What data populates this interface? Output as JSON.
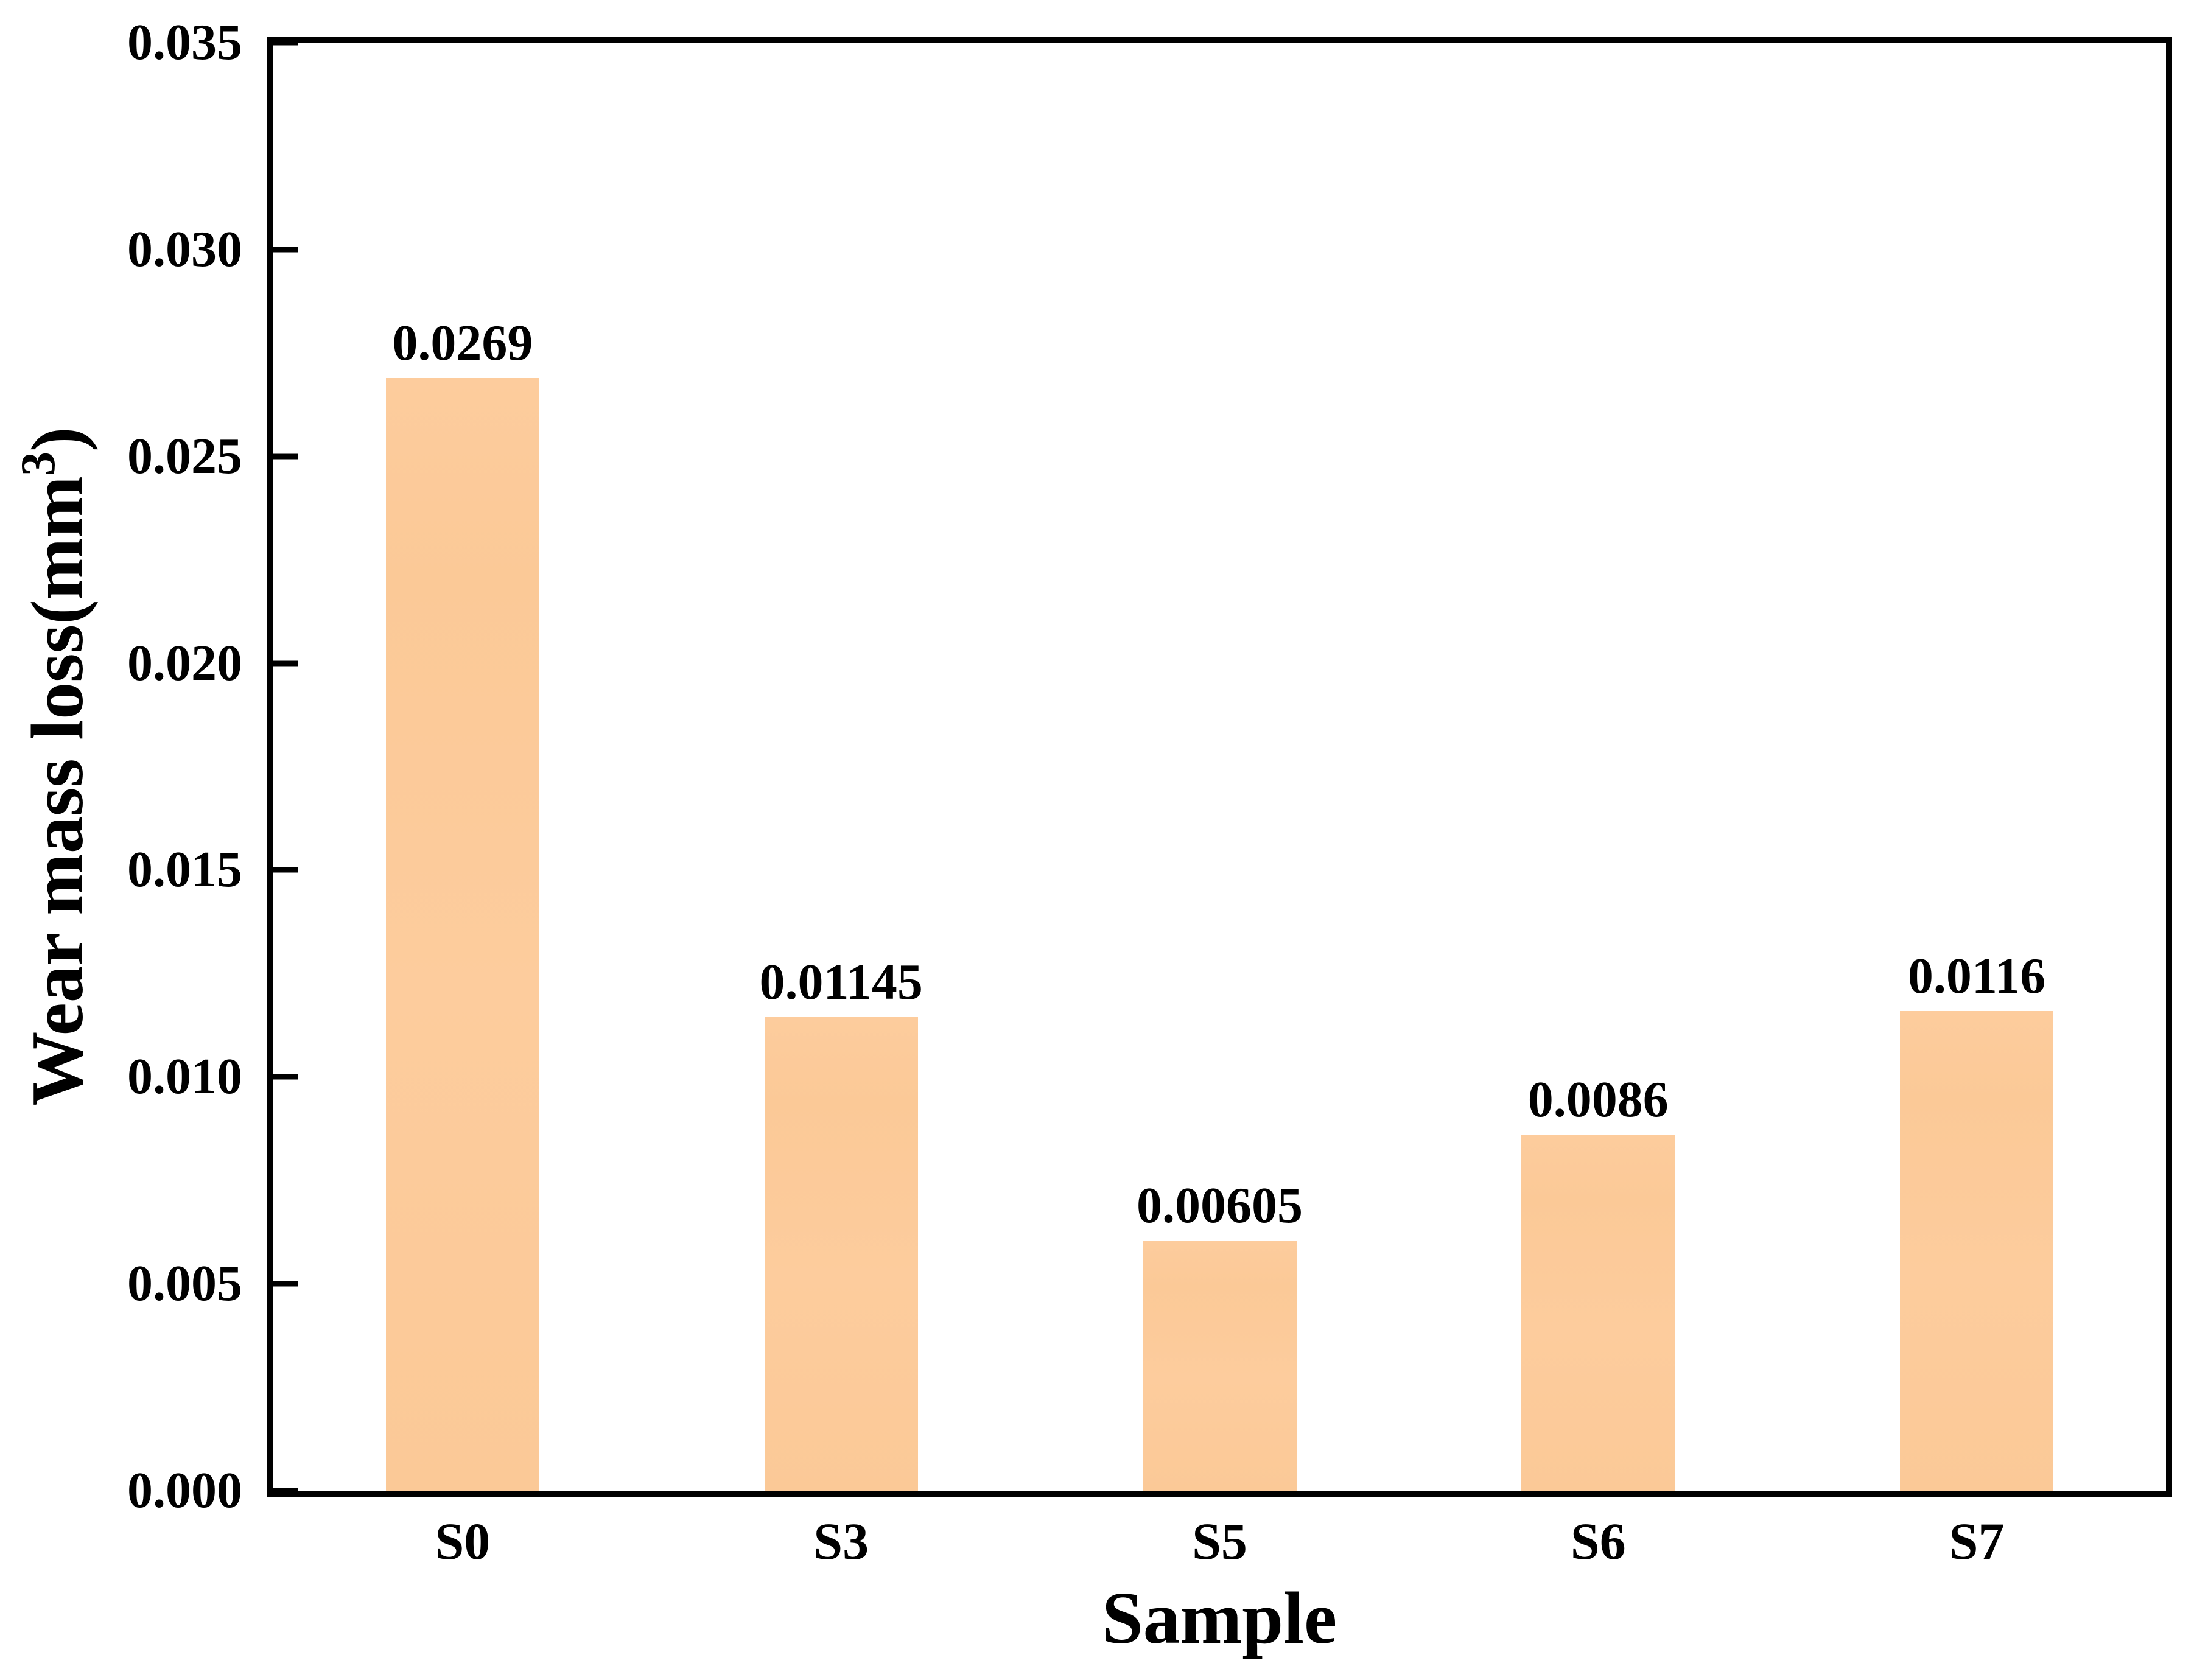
{
  "page": {
    "background": "#ffffff"
  },
  "chart_data": {
    "type": "bar",
    "title": "",
    "categories": [
      "S0",
      "S3",
      "S5",
      "S6",
      "S7"
    ],
    "values": [
      0.0269,
      0.01145,
      0.00605,
      0.0086,
      0.0116
    ],
    "bar_labels": [
      "0.0269",
      "0.01145",
      "0.00605",
      "0.0086",
      "0.0116"
    ],
    "xlabel": "Sample",
    "ylabel": {
      "plain": "Wear mass loss(mm3)",
      "text": "Wear mass loss(mm",
      "sup": "3",
      "close": ")"
    },
    "ylim": [
      0,
      0.035
    ],
    "yticks": [
      {
        "value": 0.0,
        "label": "0.000"
      },
      {
        "value": 0.005,
        "label": "0.005"
      },
      {
        "value": 0.01,
        "label": "0.010"
      },
      {
        "value": 0.015,
        "label": "0.015"
      },
      {
        "value": 0.02,
        "label": "0.020"
      },
      {
        "value": 0.025,
        "label": "0.025"
      },
      {
        "value": 0.03,
        "label": "0.030"
      },
      {
        "value": 0.035,
        "label": "0.035"
      }
    ],
    "grid": false,
    "legend": null,
    "bar_color": "#FBC997",
    "bar_color_light": "#FDCC9D",
    "axis_color": "#000000",
    "text_color": "#000000",
    "bar_width_fraction": 0.405,
    "tick_direction": "in",
    "tick_length": 40
  }
}
